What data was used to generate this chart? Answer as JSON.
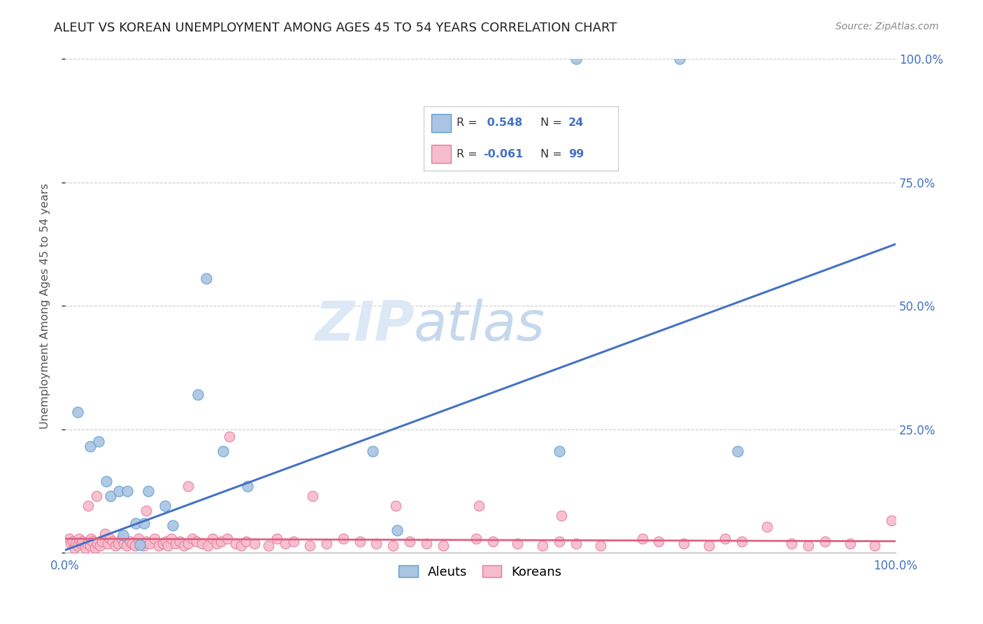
{
  "title": "ALEUT VS KOREAN UNEMPLOYMENT AMONG AGES 45 TO 54 YEARS CORRELATION CHART",
  "source": "Source: ZipAtlas.com",
  "ylabel": "Unemployment Among Ages 45 to 54 years",
  "xlim": [
    0.0,
    1.0
  ],
  "ylim": [
    0.0,
    1.0
  ],
  "legend_aleut_R": " 0.548",
  "legend_aleut_N": "24",
  "legend_korean_R": "-0.061",
  "legend_korean_N": "99",
  "aleut_color": "#aac4e2",
  "aleut_edge_color": "#5a9fd4",
  "korean_color": "#f5bccb",
  "korean_edge_color": "#e8789a",
  "blue_line_color": "#4472c4",
  "red_line_color": "#e06080",
  "title_color": "#222222",
  "title_fontsize": 13,
  "source_fontsize": 10,
  "axis_label_color": "#4472c4",
  "ylabel_color": "#555555",
  "aleut_line_slope": 0.62,
  "aleut_line_intercept": 0.005,
  "korean_line_slope": -0.005,
  "korean_line_intercept": 0.028,
  "aleut_scatter_x": [
    0.015,
    0.03,
    0.04,
    0.05,
    0.055,
    0.065,
    0.07,
    0.075,
    0.085,
    0.09,
    0.095,
    0.1,
    0.12,
    0.13,
    0.16,
    0.17,
    0.19,
    0.22,
    0.37,
    0.4,
    0.595,
    0.615,
    0.74,
    0.81
  ],
  "aleut_scatter_y": [
    0.285,
    0.215,
    0.225,
    0.145,
    0.115,
    0.125,
    0.035,
    0.125,
    0.06,
    0.015,
    0.06,
    0.125,
    0.095,
    0.055,
    0.32,
    0.555,
    0.205,
    0.135,
    0.205,
    0.045,
    0.205,
    1.0,
    1.0,
    0.205
  ],
  "korean_scatter_x": [
    0.005,
    0.007,
    0.009,
    0.011,
    0.013,
    0.015,
    0.017,
    0.019,
    0.021,
    0.024,
    0.027,
    0.03,
    0.031,
    0.033,
    0.036,
    0.039,
    0.042,
    0.045,
    0.048,
    0.051,
    0.054,
    0.057,
    0.061,
    0.064,
    0.068,
    0.071,
    0.074,
    0.078,
    0.081,
    0.084,
    0.088,
    0.091,
    0.094,
    0.098,
    0.102,
    0.108,
    0.113,
    0.118,
    0.121,
    0.124,
    0.128,
    0.133,
    0.138,
    0.143,
    0.148,
    0.153,
    0.158,
    0.165,
    0.172,
    0.178,
    0.183,
    0.188,
    0.195,
    0.205,
    0.212,
    0.218,
    0.228,
    0.245,
    0.255,
    0.265,
    0.275,
    0.295,
    0.315,
    0.335,
    0.355,
    0.375,
    0.395,
    0.415,
    0.435,
    0.455,
    0.495,
    0.515,
    0.545,
    0.575,
    0.595,
    0.615,
    0.645,
    0.695,
    0.715,
    0.745,
    0.775,
    0.795,
    0.815,
    0.845,
    0.875,
    0.895,
    0.915,
    0.945,
    0.975,
    0.995,
    0.028,
    0.038,
    0.098,
    0.148,
    0.198,
    0.298,
    0.398,
    0.498,
    0.598
  ],
  "korean_scatter_y": [
    0.028,
    0.018,
    0.023,
    0.01,
    0.018,
    0.014,
    0.028,
    0.018,
    0.023,
    0.01,
    0.018,
    0.014,
    0.028,
    0.023,
    0.01,
    0.018,
    0.014,
    0.023,
    0.038,
    0.018,
    0.028,
    0.023,
    0.014,
    0.018,
    0.028,
    0.018,
    0.014,
    0.023,
    0.018,
    0.014,
    0.028,
    0.018,
    0.014,
    0.023,
    0.018,
    0.028,
    0.014,
    0.018,
    0.023,
    0.014,
    0.028,
    0.018,
    0.023,
    0.014,
    0.018,
    0.028,
    0.023,
    0.018,
    0.014,
    0.028,
    0.018,
    0.023,
    0.028,
    0.018,
    0.014,
    0.023,
    0.018,
    0.014,
    0.028,
    0.018,
    0.023,
    0.014,
    0.018,
    0.028,
    0.023,
    0.018,
    0.014,
    0.023,
    0.018,
    0.014,
    0.028,
    0.023,
    0.018,
    0.014,
    0.023,
    0.018,
    0.014,
    0.028,
    0.023,
    0.018,
    0.014,
    0.028,
    0.023,
    0.052,
    0.018,
    0.014,
    0.023,
    0.018,
    0.014,
    0.065,
    0.095,
    0.115,
    0.085,
    0.135,
    0.235,
    0.115,
    0.095,
    0.095,
    0.075
  ]
}
